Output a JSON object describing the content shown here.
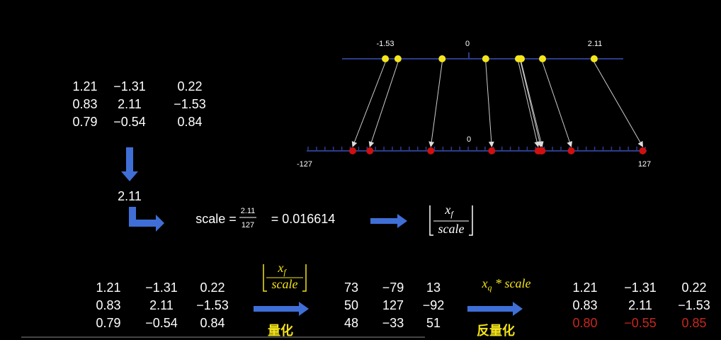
{
  "top_matrix": {
    "rows": [
      [
        "1.21",
        "−1.31",
        "0.22"
      ],
      [
        "0.83",
        "2.11",
        "−1.53"
      ],
      [
        "0.79",
        "−0.54",
        "0.84"
      ]
    ]
  },
  "max_value": "2.11",
  "scale_formula": {
    "lhs": "scale =",
    "numerator": "2.11",
    "denominator": "127",
    "result": "= 0.016614"
  },
  "round_formula": {
    "numerator": "x",
    "subscript": "f",
    "denominator": "scale"
  },
  "float_line": {
    "labels": [
      "-1.53",
      "0",
      "2.11"
    ]
  },
  "int_line": {
    "labels": [
      "-127",
      "0",
      "127"
    ]
  },
  "original_matrix": {
    "rows": [
      [
        "1.21",
        "−1.31",
        "0.22"
      ],
      [
        "0.83",
        "2.11",
        "−1.53"
      ],
      [
        "0.79",
        "−0.54",
        "0.84"
      ]
    ]
  },
  "quantize_step": {
    "numerator": "x",
    "subscript": "f",
    "denominator": "scale",
    "label": "量化"
  },
  "quantized_matrix": {
    "rows": [
      [
        "73",
        "−79",
        "13"
      ],
      [
        "50",
        "127",
        "−92"
      ],
      [
        "48",
        "−33",
        "51"
      ]
    ]
  },
  "dequantize_step": {
    "formula": "x",
    "subscript": "q",
    "rest": " * scale",
    "label": "反量化"
  },
  "dequantized_matrix": {
    "rows": [
      [
        "1.21",
        "−1.31",
        "0.22"
      ],
      [
        "0.83",
        "2.11",
        "−1.53"
      ],
      [
        "0.80",
        "−0.55",
        "0.85"
      ]
    ]
  }
}
